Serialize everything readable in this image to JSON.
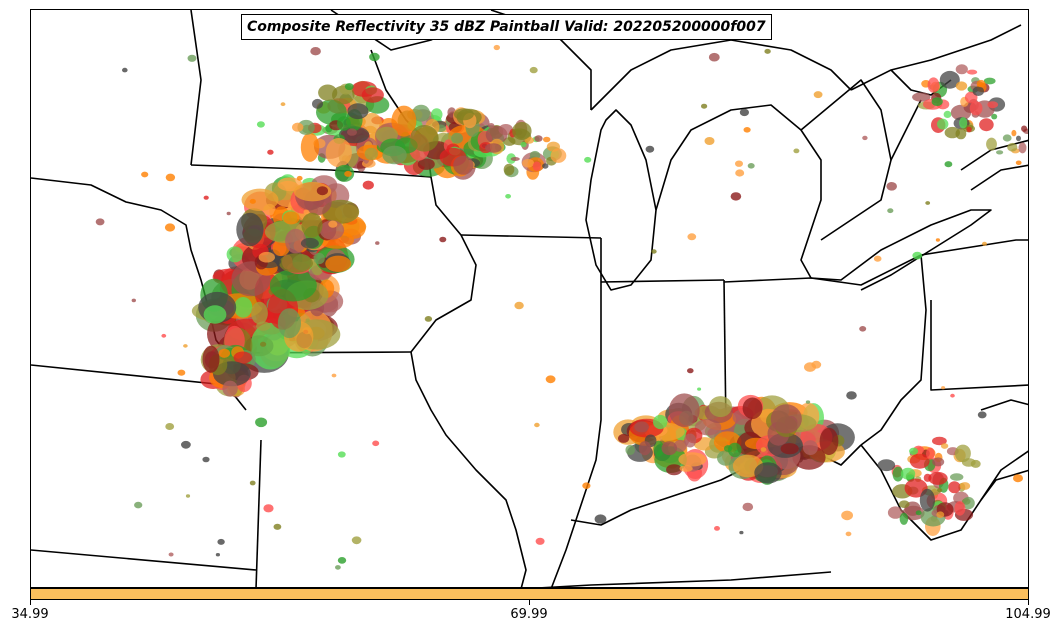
{
  "title": "Composite Reflectivity 35 dBZ Paintball Valid: 202205200000f007",
  "colorbar": {
    "color": "#fbbf5d",
    "ticks": [
      "34.99",
      "69.99",
      "104.99"
    ]
  },
  "map": {
    "basemap": "US Midwest / Great Lakes state boundaries",
    "member_colors": [
      "#8b1a1a",
      "#a05050",
      "#e02020",
      "#ff4d4d",
      "#ff7f00",
      "#ffa040",
      "#f0a030",
      "#2ca02c",
      "#55dd55",
      "#6b9e5a",
      "#808020",
      "#a0a040",
      "#444444",
      "#b06060"
    ]
  }
}
